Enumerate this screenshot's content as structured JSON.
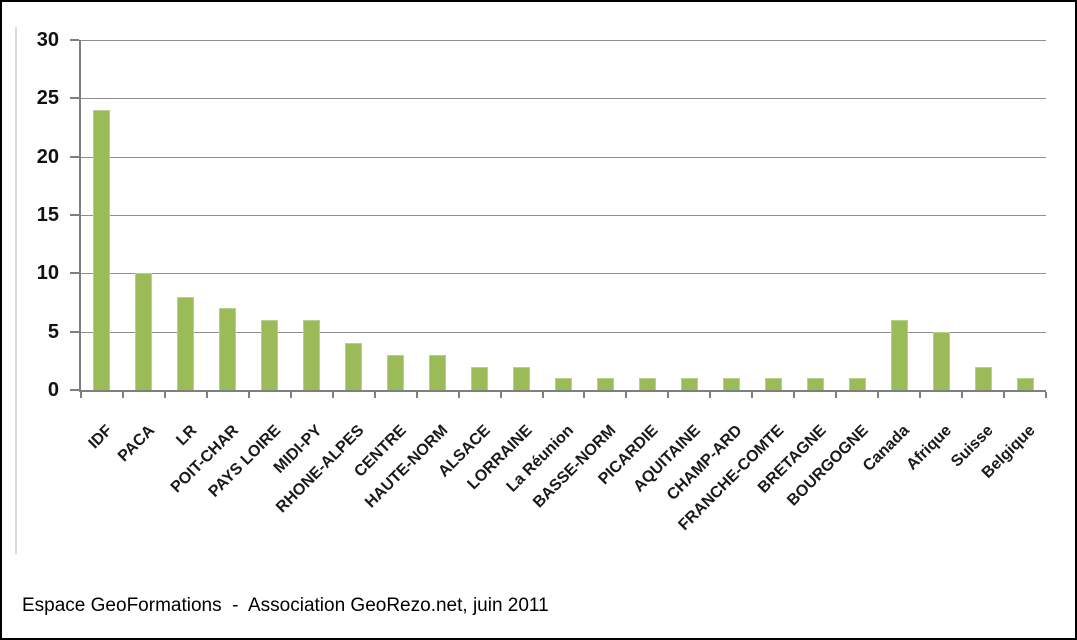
{
  "chart_data": {
    "type": "bar",
    "categories": [
      "IDF",
      "PACA",
      "LR",
      "POIT-CHAR",
      "PAYS LOIRE",
      "MIDI-PY",
      "RHONE-ALPES",
      "CENTRE",
      "HAUTE-NORM",
      "ALSACE",
      "LORRAINE",
      "La Réunion",
      "BASSE-NORM",
      "PICARDIE",
      "AQUITAINE",
      "CHAMP-ARD",
      "FRANCHE-COMTE",
      "BRETAGNE",
      "BOURGOGNE",
      "Canada",
      "Afrique",
      "Suisse",
      "Belgique"
    ],
    "values": [
      24,
      10,
      8,
      7,
      6,
      6,
      4,
      3,
      3,
      2,
      2,
      1,
      1,
      1,
      1,
      1,
      1,
      1,
      1,
      6,
      5,
      2,
      1
    ],
    "title": "",
    "xlabel": "",
    "ylabel": "",
    "ylim": [
      0,
      30
    ],
    "yticks": [
      0,
      5,
      10,
      15,
      20,
      25,
      30
    ],
    "grid": true,
    "legend": false,
    "bar_color": "#9bbb59",
    "bar_border_color": "#b9cf8e",
    "gridline_color": "#8f8f8f",
    "axis_color": "#7f7f7f",
    "label_color": "#1a1a1a"
  },
  "caption": "Espace GeoFormations  -  Association GeoRezo.net, juin 2011"
}
